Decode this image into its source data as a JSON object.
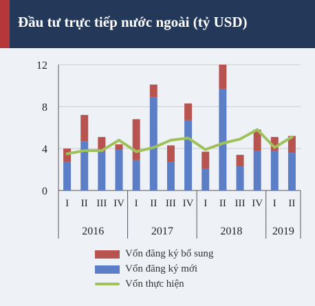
{
  "header": {
    "title": "Đầu tư trực tiếp nước ngoài (tỷ USD)"
  },
  "chart_data": {
    "type": "bar",
    "stacked": true,
    "title": "Đầu tư trực tiếp nước ngoài (tỷ USD)",
    "categories": [
      "I",
      "II",
      "III",
      "IV",
      "I",
      "II",
      "III",
      "IV",
      "I",
      "II",
      "III",
      "IV",
      "I",
      "II"
    ],
    "groups": [
      {
        "label": "2016",
        "count": 4
      },
      {
        "label": "2017",
        "count": 4
      },
      {
        "label": "2018",
        "count": 4
      },
      {
        "label": "2019",
        "count": 2
      }
    ],
    "ylim": [
      0,
      12
    ],
    "yticks": [
      0,
      4,
      8,
      12
    ],
    "grid": true,
    "legend_position": "bottom",
    "series": [
      {
        "name": "Vốn đăng ký mới",
        "kind": "bar",
        "color": "#5b7ec6",
        "values": [
          2.7,
          4.7,
          3.7,
          3.9,
          2.9,
          8.9,
          2.7,
          6.7,
          2.1,
          9.7,
          2.3,
          3.8,
          3.8,
          3.6
        ]
      },
      {
        "name": "Vốn đăng ký bổ sung",
        "kind": "bar",
        "color": "#b85450",
        "values": [
          1.3,
          2.5,
          1.4,
          0.5,
          3.9,
          1.2,
          1.6,
          1.6,
          1.6,
          2.3,
          1.1,
          2.0,
          1.3,
          1.6
        ]
      },
      {
        "name": "Vốn thực hiện",
        "kind": "line",
        "color": "#9fc15a",
        "values": [
          3.5,
          3.8,
          3.8,
          4.8,
          3.7,
          4.1,
          4.8,
          5.0,
          3.9,
          4.5,
          4.9,
          5.8,
          4.1,
          5.1
        ]
      }
    ]
  },
  "legend": {
    "items": [
      {
        "label": "Vốn đăng ký bổ sung",
        "color": "#b85450",
        "kind": "bar"
      },
      {
        "label": "Vốn đăng ký mới",
        "color": "#5b7ec6",
        "kind": "bar"
      },
      {
        "label": "Vốn thực hiện",
        "color": "#9fc15a",
        "kind": "line"
      }
    ]
  }
}
